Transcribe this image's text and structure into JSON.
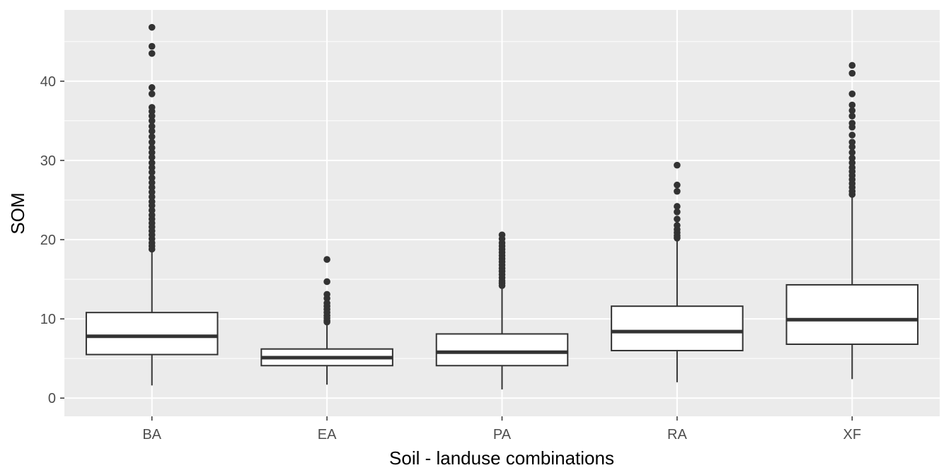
{
  "chart_data": {
    "type": "boxplot",
    "title": "",
    "xlabel": "Soil - landuse combinations",
    "ylabel": "SOM",
    "ylim": [
      -2.3,
      49.0
    ],
    "yticks": [
      0,
      10,
      20,
      30,
      40
    ],
    "grid": true,
    "panel_background": "#ebebeb",
    "grid_color": "#ffffff",
    "box_fill": "#ffffff",
    "line_color": "#333333",
    "categories": [
      "BA",
      "EA",
      "PA",
      "RA",
      "XF"
    ],
    "boxes": [
      {
        "category": "BA",
        "whisker_low": 1.6,
        "q1": 5.5,
        "median": 7.8,
        "q3": 10.8,
        "whisker_high": 18.4,
        "outliers": [
          46.8,
          44.4,
          43.5,
          39.2,
          38.4,
          36.7,
          36.2,
          35.6,
          35.0,
          34.3,
          33.7,
          33.0,
          32.3,
          31.6,
          31.0,
          30.4,
          29.7,
          29.1,
          28.5,
          27.8,
          27.2,
          26.6,
          26.0,
          25.4,
          24.8,
          24.3,
          23.7,
          23.1,
          22.6,
          22.1,
          21.6,
          21.1,
          20.6,
          20.1,
          19.6,
          19.2,
          18.8
        ]
      },
      {
        "category": "EA",
        "whisker_low": 1.7,
        "q1": 4.1,
        "median": 5.1,
        "q3": 6.2,
        "whisker_high": 9.3,
        "outliers": [
          17.5,
          14.7,
          13.1,
          12.6,
          12.0,
          11.6,
          11.2,
          10.8,
          10.4,
          10.1,
          9.8,
          9.6
        ]
      },
      {
        "category": "PA",
        "whisker_low": 1.1,
        "q1": 4.1,
        "median": 5.8,
        "q3": 8.1,
        "whisker_high": 13.8,
        "outliers": [
          20.6,
          20.1,
          19.6,
          19.2,
          18.8,
          18.4,
          18.0,
          17.6,
          17.2,
          16.8,
          16.4,
          16.0,
          15.6,
          15.2,
          14.8,
          14.5,
          14.2
        ]
      },
      {
        "category": "RA",
        "whisker_low": 2.0,
        "q1": 6.0,
        "median": 8.4,
        "q3": 11.6,
        "whisker_high": 19.9,
        "outliers": [
          29.4,
          26.9,
          26.1,
          24.2,
          23.5,
          22.6,
          21.8,
          21.3,
          20.9,
          20.5,
          20.2
        ]
      },
      {
        "category": "XF",
        "whisker_low": 2.4,
        "q1": 6.8,
        "median": 9.9,
        "q3": 14.3,
        "whisker_high": 25.4,
        "outliers": [
          42.0,
          41.0,
          38.4,
          37.0,
          36.3,
          35.6,
          34.7,
          34.2,
          33.2,
          32.3,
          31.7,
          31.0,
          30.3,
          29.7,
          29.1,
          28.6,
          28.1,
          27.6,
          27.1,
          26.6,
          26.1,
          25.7
        ]
      }
    ]
  }
}
